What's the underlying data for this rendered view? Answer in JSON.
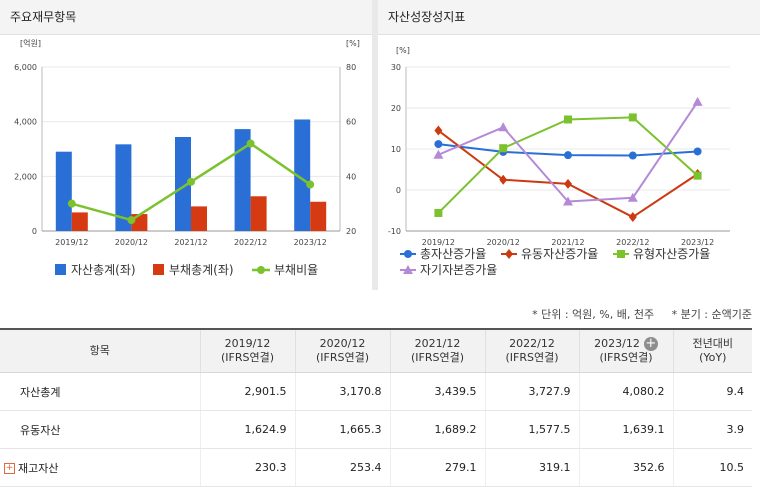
{
  "left_panel": {
    "title": "주요재무항목"
  },
  "right_panel": {
    "title": "자산성장성지표"
  },
  "chart_data": [
    {
      "type": "bar",
      "categories": [
        "2019/12",
        "2020/12",
        "2021/12",
        "2022/12",
        "2023/12"
      ],
      "left_unit": "[억원]",
      "right_unit": "[%]",
      "ylim": [
        0,
        6000
      ],
      "y2lim": [
        20,
        80
      ],
      "yticks": [
        "6,000",
        "4,000",
        "2,000",
        "0"
      ],
      "y2ticks": [
        "80",
        "60",
        "40",
        "20"
      ],
      "series": [
        {
          "name": "자산총계(좌)",
          "kind": "bar",
          "axis": "left",
          "color": "#2a6fd6",
          "values": [
            2901.5,
            3170.8,
            3439.5,
            3727.9,
            4080.2
          ]
        },
        {
          "name": "부채총계(좌)",
          "kind": "bar",
          "axis": "left",
          "color": "#d63a12",
          "values": [
            680,
            620,
            900,
            1270,
            1070
          ]
        },
        {
          "name": "부채비율",
          "kind": "line",
          "axis": "right",
          "color": "#7cc22e",
          "values": [
            30,
            24,
            38,
            52,
            37
          ]
        }
      ],
      "legend": "bottom",
      "grid": true
    },
    {
      "type": "line",
      "categories": [
        "2019/12",
        "2020/12",
        "2021/12",
        "2022/12",
        "2023/12"
      ],
      "unit": "[%]",
      "ylim": [
        -10,
        30
      ],
      "yticks": [
        "30",
        "20",
        "10",
        "0",
        "-10"
      ],
      "series": [
        {
          "name": "총자산증가율",
          "marker": "circle",
          "color": "#2a6fd6",
          "values": [
            11.2,
            9.3,
            8.5,
            8.4,
            9.4
          ]
        },
        {
          "name": "유동자산증가율",
          "marker": "diamond",
          "color": "#cc3a10",
          "values": [
            14.5,
            2.5,
            1.5,
            -6.6,
            3.9
          ]
        },
        {
          "name": "유형자산증가율",
          "marker": "square",
          "color": "#7cc22e",
          "values": [
            -5.6,
            10.2,
            17.2,
            17.7,
            3.5
          ]
        },
        {
          "name": "자기자본증가율",
          "marker": "triangle",
          "color": "#b48ad6",
          "values": [
            8.6,
            15.3,
            -2.8,
            -1.9,
            21.5
          ]
        }
      ],
      "legend": "bottom",
      "grid": true
    }
  ],
  "notes": {
    "unit": "* 단위 : 억원, %, 배, 천주",
    "period": "* 분기 : 순액기준"
  },
  "table": {
    "headers": [
      "항목",
      "2019/12",
      "2020/12",
      "2021/12",
      "2022/12",
      "2023/12",
      "전년대비"
    ],
    "sub_headers": [
      "",
      "(IFRS연결)",
      "(IFRS연결)",
      "(IFRS연결)",
      "(IFRS연결)",
      "(IFRS연결)",
      "(YoY)"
    ],
    "add_icon": "plus-circle-icon",
    "rows": [
      {
        "label": "자산총계",
        "values": [
          "2,901.5",
          "3,170.8",
          "3,439.5",
          "3,727.9",
          "4,080.2",
          "9.4"
        ]
      },
      {
        "label": "유동자산",
        "values": [
          "1,624.9",
          "1,665.3",
          "1,689.2",
          "1,577.5",
          "1,639.1",
          "3.9"
        ]
      },
      {
        "label": "재고자산",
        "expand_icon": "plus-box-icon",
        "expand_symbol": "+",
        "values": [
          "230.3",
          "253.4",
          "279.1",
          "319.1",
          "352.6",
          "10.5"
        ]
      }
    ]
  }
}
